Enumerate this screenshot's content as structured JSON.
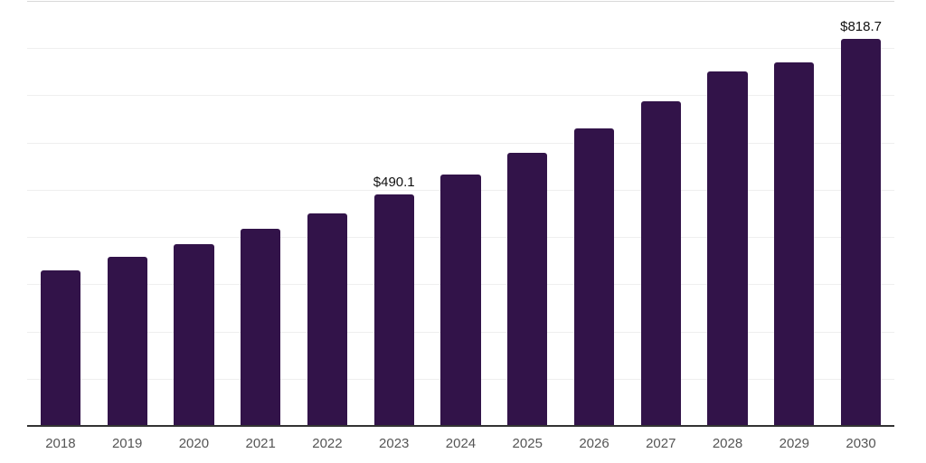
{
  "chart_data": {
    "type": "bar",
    "title": "",
    "xlabel": "",
    "ylabel": "",
    "categories": [
      "2018",
      "2019",
      "2020",
      "2021",
      "2022",
      "2023",
      "2024",
      "2025",
      "2026",
      "2027",
      "2028",
      "2029",
      "2030"
    ],
    "values": [
      329.4,
      357.2,
      385.4,
      416.7,
      449.4,
      490.1,
      532.0,
      579.0,
      630.0,
      687.4,
      750.1,
      770.4,
      818.7
    ],
    "value_labels": [
      "",
      "",
      "",
      "",
      "",
      "$490.1",
      "",
      "",
      "",
      "",
      "",
      "",
      "$818.7"
    ],
    "ylim": [
      0,
      900
    ],
    "grid_interval": 100,
    "grid_visible": true,
    "y_tick_labels_visible": false,
    "legend": "none",
    "colors": {
      "bar": "#321349",
      "gridline": "#efefef",
      "top_border": "#d9d9d9",
      "axis_line": "#333333",
      "tick_label": "#555555",
      "value_label": "#111111",
      "background": "#ffffff"
    }
  }
}
